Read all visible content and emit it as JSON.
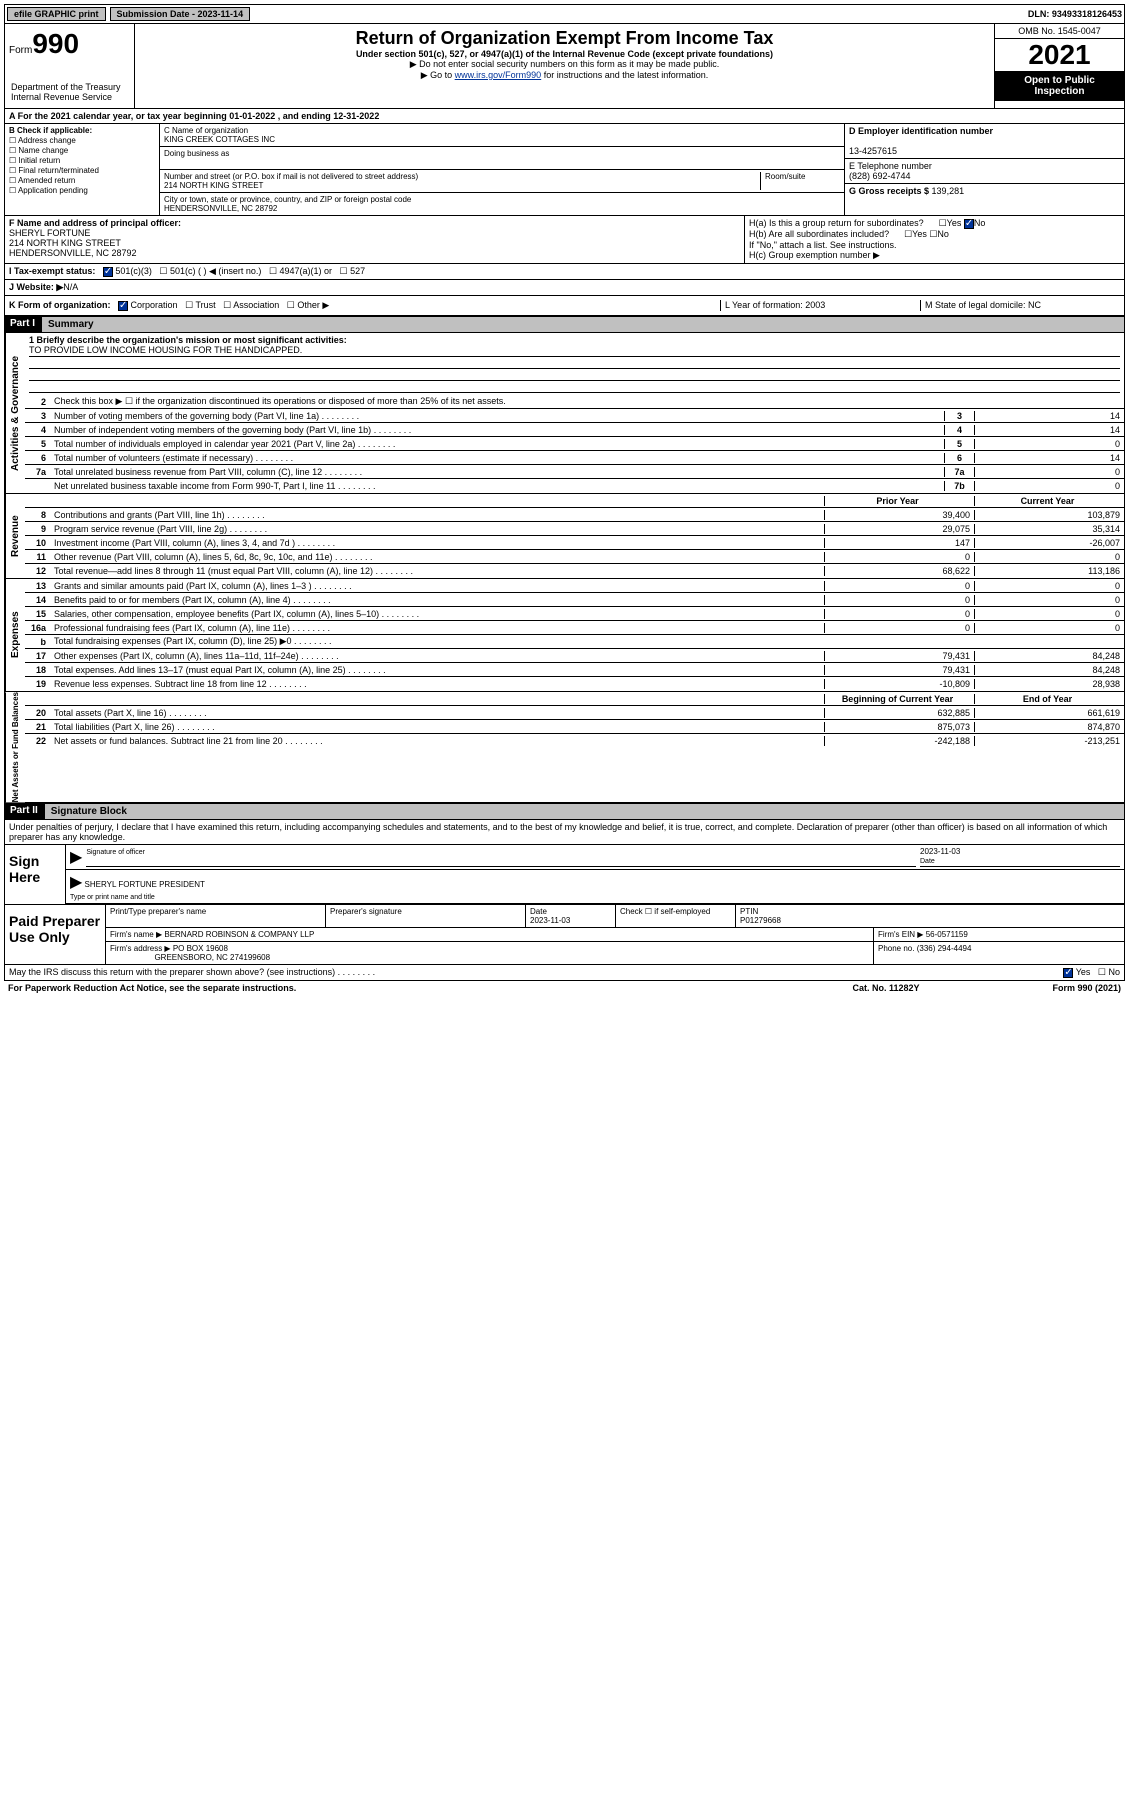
{
  "topbar": {
    "efile": "efile GRAPHIC print",
    "subdate_label": "Submission Date - 2023-11-14",
    "dln": "DLN: 93493318126453"
  },
  "header": {
    "form_label": "Form",
    "form_number": "990",
    "dept": "Department of the Treasury\nInternal Revenue Service",
    "title": "Return of Organization Exempt From Income Tax",
    "subtitle": "Under section 501(c), 527, or 4947(a)(1) of the Internal Revenue Code (except private foundations)",
    "note1": "▶ Do not enter social security numbers on this form as it may be made public.",
    "note2_pre": "▶ Go to ",
    "note2_link": "www.irs.gov/Form990",
    "note2_post": " for instructions and the latest information.",
    "omb": "OMB No. 1545-0047",
    "year": "2021",
    "open": "Open to Public Inspection"
  },
  "row_a": {
    "text": "A For the 2021 calendar year, or tax year beginning 01-01-2022   , and ending 12-31-2022"
  },
  "col_b": {
    "label": "B Check if applicable:",
    "items": [
      "Address change",
      "Name change",
      "Initial return",
      "Final return/terminated",
      "Amended return",
      "Application pending"
    ]
  },
  "col_c": {
    "name_label": "C Name of organization",
    "name": "KING CREEK COTTAGES INC",
    "dba_label": "Doing business as",
    "dba": "",
    "addr_label": "Number and street (or P.O. box if mail is not delivered to street address)",
    "room_label": "Room/suite",
    "addr": "214 NORTH KING STREET",
    "city_label": "City or town, state or province, country, and ZIP or foreign postal code",
    "city": "HENDERSONVILLE, NC  28792"
  },
  "col_de": {
    "d_label": "D Employer identification number",
    "ein": "13-4257615",
    "e_label": "E Telephone number",
    "phone": "(828) 692-4744",
    "g_label": "G Gross receipts $ ",
    "gross": "139,281"
  },
  "row_f": {
    "label": "F  Name and address of principal officer:",
    "name": "SHERYL FORTUNE",
    "addr1": "214 NORTH KING STREET",
    "addr2": "HENDERSONVILLE, NC  28792"
  },
  "row_h": {
    "ha": "H(a)  Is this a group return for subordinates?",
    "hb": "H(b)  Are all subordinates included?",
    "hb_note": "If \"No,\" attach a list. See instructions.",
    "hc": "H(c)  Group exemption number ▶"
  },
  "row_i": {
    "label": "I   Tax-exempt status:",
    "opts": [
      "501(c)(3)",
      "501(c) (  ) ◀ (insert no.)",
      "4947(a)(1) or",
      "527"
    ]
  },
  "row_j": {
    "label": "J   Website: ▶ ",
    "value": "N/A"
  },
  "row_k": {
    "k": "K Form of organization:",
    "opts": [
      "Corporation",
      "Trust",
      "Association",
      "Other ▶"
    ],
    "l": "L Year of formation: 2003",
    "m": "M State of legal domicile: NC"
  },
  "part1": {
    "header": "Part I",
    "title": "Summary",
    "q1_label": "1  Briefly describe the organization's mission or most significant activities:",
    "q1_value": "TO PROVIDE LOW INCOME HOUSING FOR THE HANDICAPPED.",
    "q2": "Check this box ▶ ☐  if the organization discontinued its operations or disposed of more than 25% of its net assets.",
    "sections": {
      "gov": "Activities & Governance",
      "rev": "Revenue",
      "exp": "Expenses",
      "net": "Net Assets or Fund Balances"
    },
    "gov_lines": [
      {
        "n": "3",
        "d": "Number of voting members of the governing body (Part VI, line 1a)",
        "b": "3",
        "v": "14"
      },
      {
        "n": "4",
        "d": "Number of independent voting members of the governing body (Part VI, line 1b)",
        "b": "4",
        "v": "14"
      },
      {
        "n": "5",
        "d": "Total number of individuals employed in calendar year 2021 (Part V, line 2a)",
        "b": "5",
        "v": "0"
      },
      {
        "n": "6",
        "d": "Total number of volunteers (estimate if necessary)",
        "b": "6",
        "v": "14"
      },
      {
        "n": "7a",
        "d": "Total unrelated business revenue from Part VIII, column (C), line 12",
        "b": "7a",
        "v": "0"
      },
      {
        "n": "",
        "d": "Net unrelated business taxable income from Form 990-T, Part I, line 11",
        "b": "7b",
        "v": "0"
      }
    ],
    "py_label": "Prior Year",
    "cy_label": "Current Year",
    "rev_lines": [
      {
        "n": "8",
        "d": "Contributions and grants (Part VIII, line 1h)",
        "py": "39,400",
        "cy": "103,879"
      },
      {
        "n": "9",
        "d": "Program service revenue (Part VIII, line 2g)",
        "py": "29,075",
        "cy": "35,314"
      },
      {
        "n": "10",
        "d": "Investment income (Part VIII, column (A), lines 3, 4, and 7d )",
        "py": "147",
        "cy": "-26,007"
      },
      {
        "n": "11",
        "d": "Other revenue (Part VIII, column (A), lines 5, 6d, 8c, 9c, 10c, and 11e)",
        "py": "0",
        "cy": "0"
      },
      {
        "n": "12",
        "d": "Total revenue—add lines 8 through 11 (must equal Part VIII, column (A), line 12)",
        "py": "68,622",
        "cy": "113,186"
      }
    ],
    "exp_lines": [
      {
        "n": "13",
        "d": "Grants and similar amounts paid (Part IX, column (A), lines 1–3 )",
        "py": "0",
        "cy": "0"
      },
      {
        "n": "14",
        "d": "Benefits paid to or for members (Part IX, column (A), line 4)",
        "py": "0",
        "cy": "0"
      },
      {
        "n": "15",
        "d": "Salaries, other compensation, employee benefits (Part IX, column (A), lines 5–10)",
        "py": "0",
        "cy": "0"
      },
      {
        "n": "16a",
        "d": "Professional fundraising fees (Part IX, column (A), line 11e)",
        "py": "0",
        "cy": "0"
      },
      {
        "n": "b",
        "d": "Total fundraising expenses (Part IX, column (D), line 25) ▶0",
        "py": "",
        "cy": "",
        "gray": true
      },
      {
        "n": "17",
        "d": "Other expenses (Part IX, column (A), lines 11a–11d, 11f–24e)",
        "py": "79,431",
        "cy": "84,248"
      },
      {
        "n": "18",
        "d": "Total expenses. Add lines 13–17 (must equal Part IX, column (A), line 25)",
        "py": "79,431",
        "cy": "84,248"
      },
      {
        "n": "19",
        "d": "Revenue less expenses. Subtract line 18 from line 12",
        "py": "-10,809",
        "cy": "28,938"
      }
    ],
    "boy_label": "Beginning of Current Year",
    "eoy_label": "End of Year",
    "net_lines": [
      {
        "n": "20",
        "d": "Total assets (Part X, line 16)",
        "py": "632,885",
        "cy": "661,619"
      },
      {
        "n": "21",
        "d": "Total liabilities (Part X, line 26)",
        "py": "875,073",
        "cy": "874,870"
      },
      {
        "n": "22",
        "d": "Net assets or fund balances. Subtract line 21 from line 20",
        "py": "-242,188",
        "cy": "-213,251"
      }
    ]
  },
  "part2": {
    "header": "Part II",
    "title": "Signature Block",
    "decl": "Under penalties of perjury, I declare that I have examined this return, including accompanying schedules and statements, and to the best of my knowledge and belief, it is true, correct, and complete. Declaration of preparer (other than officer) is based on all information of which preparer has any knowledge.",
    "sign_here": "Sign Here",
    "sig_officer": "Signature of officer",
    "sig_date": "2023-11-03",
    "date_label": "Date",
    "officer_name": "SHERYL FORTUNE  PRESIDENT",
    "officer_label": "Type or print name and title",
    "paid": "Paid Preparer Use Only",
    "prep_name_label": "Print/Type preparer's name",
    "prep_sig_label": "Preparer's signature",
    "prep_date_label": "Date",
    "prep_date": "2023-11-03",
    "check_label": "Check ☐ if self-employed",
    "ptin_label": "PTIN",
    "ptin": "P01279668",
    "firm_name_label": "Firm's name   ▶ ",
    "firm_name": "BERNARD ROBINSON & COMPANY LLP",
    "firm_ein_label": "Firm's EIN ▶ ",
    "firm_ein": "56-0571159",
    "firm_addr_label": "Firm's address ▶ ",
    "firm_addr1": "PO BOX 19608",
    "firm_addr2": "GREENSBORO, NC  274199608",
    "phone_label": "Phone no. ",
    "phone": "(336) 294-4494",
    "may_irs": "May the IRS discuss this return with the preparer shown above? (see instructions)",
    "yes": "Yes",
    "no": "No"
  },
  "footer": {
    "paperwork": "For Paperwork Reduction Act Notice, see the separate instructions.",
    "cat": "Cat. No. 11282Y",
    "form": "Form 990 (2021)"
  }
}
